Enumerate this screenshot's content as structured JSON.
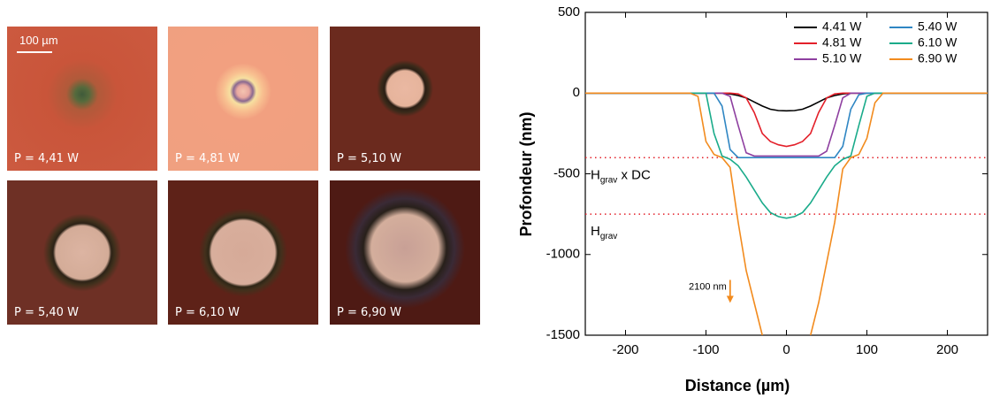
{
  "panels": [
    {
      "label": "P = 4,41 W"
    },
    {
      "label": "P = 4,81 W"
    },
    {
      "label": "P = 5,10 W"
    },
    {
      "label": "P = 5,40 W"
    },
    {
      "label": "P = 6,10 W"
    },
    {
      "label": "P = 6,90 W"
    }
  ],
  "scale_bar": "100 µm",
  "chart_data": {
    "type": "line",
    "x_label": "Distance (µm)",
    "y_label": "Profondeur (nm)",
    "x": [
      -250,
      -200,
      -150,
      -120,
      -110,
      -100,
      -90,
      -80,
      -70,
      -60,
      -50,
      -40,
      -30,
      -20,
      -10,
      0,
      10,
      20,
      30,
      40,
      50,
      60,
      70,
      80,
      90,
      100,
      110,
      120,
      150,
      200,
      250
    ],
    "series": [
      {
        "name": "4.41 W",
        "color": "#000000",
        "values": [
          0,
          0,
          0,
          0,
          0,
          0,
          0,
          0,
          -5,
          -15,
          -30,
          -55,
          -80,
          -100,
          -108,
          -110,
          -108,
          -100,
          -80,
          -55,
          -30,
          -15,
          -5,
          0,
          0,
          0,
          0,
          0,
          0,
          0,
          0
        ]
      },
      {
        "name": "4.81 W",
        "color": "#e3202a",
        "values": [
          0,
          0,
          0,
          0,
          0,
          0,
          0,
          0,
          0,
          -5,
          -30,
          -120,
          -250,
          -300,
          -320,
          -330,
          -320,
          -300,
          -250,
          -120,
          -30,
          -5,
          0,
          0,
          0,
          0,
          0,
          0,
          0,
          0,
          0
        ]
      },
      {
        "name": "5.10 W",
        "color": "#8e3fa0",
        "values": [
          0,
          0,
          0,
          0,
          0,
          0,
          0,
          0,
          -20,
          -200,
          -370,
          -390,
          -390,
          -390,
          -390,
          -390,
          -390,
          -390,
          -390,
          -390,
          -360,
          -200,
          -30,
          0,
          0,
          0,
          0,
          0,
          0,
          0,
          0
        ]
      },
      {
        "name": "5.40 W",
        "color": "#2f86c3",
        "values": [
          0,
          0,
          0,
          0,
          0,
          0,
          0,
          -80,
          -350,
          -400,
          -400,
          -400,
          -400,
          -400,
          -400,
          -400,
          -400,
          -400,
          -400,
          -400,
          -400,
          -400,
          -330,
          -100,
          -10,
          0,
          0,
          0,
          0,
          0,
          0
        ]
      },
      {
        "name": "6.10 W",
        "color": "#1aab8a",
        "values": [
          0,
          0,
          0,
          0,
          0,
          0,
          -250,
          -390,
          -410,
          -450,
          -520,
          -600,
          -680,
          -740,
          -765,
          -775,
          -765,
          -740,
          -680,
          -600,
          -520,
          -450,
          -410,
          -390,
          -200,
          -20,
          0,
          0,
          0,
          0,
          0
        ]
      },
      {
        "name": "6.90 W",
        "color": "#f28b1e",
        "values": [
          0,
          0,
          0,
          0,
          -20,
          -300,
          -380,
          -400,
          -460,
          -800,
          -1100,
          -1300,
          -1500,
          null,
          null,
          null,
          null,
          null,
          -1500,
          -1300,
          -1050,
          -800,
          -470,
          -400,
          -380,
          -280,
          -60,
          0,
          0,
          0,
          0
        ]
      }
    ],
    "xlim": [
      -250,
      250
    ],
    "ylim": [
      -1500,
      500
    ],
    "xticks": [
      -200,
      -100,
      0,
      100,
      200
    ],
    "yticks": [
      -1500,
      -1000,
      -500,
      0,
      500
    ],
    "hlines": [
      {
        "value": -400,
        "label": "H",
        "sub": "grav",
        "suffix": " x DC"
      },
      {
        "value": -750,
        "label": "H",
        "sub": "grav"
      }
    ],
    "hline_color": "#e3202a",
    "annotation": {
      "text": "2100 nm",
      "x": -70,
      "y": -1300
    }
  }
}
